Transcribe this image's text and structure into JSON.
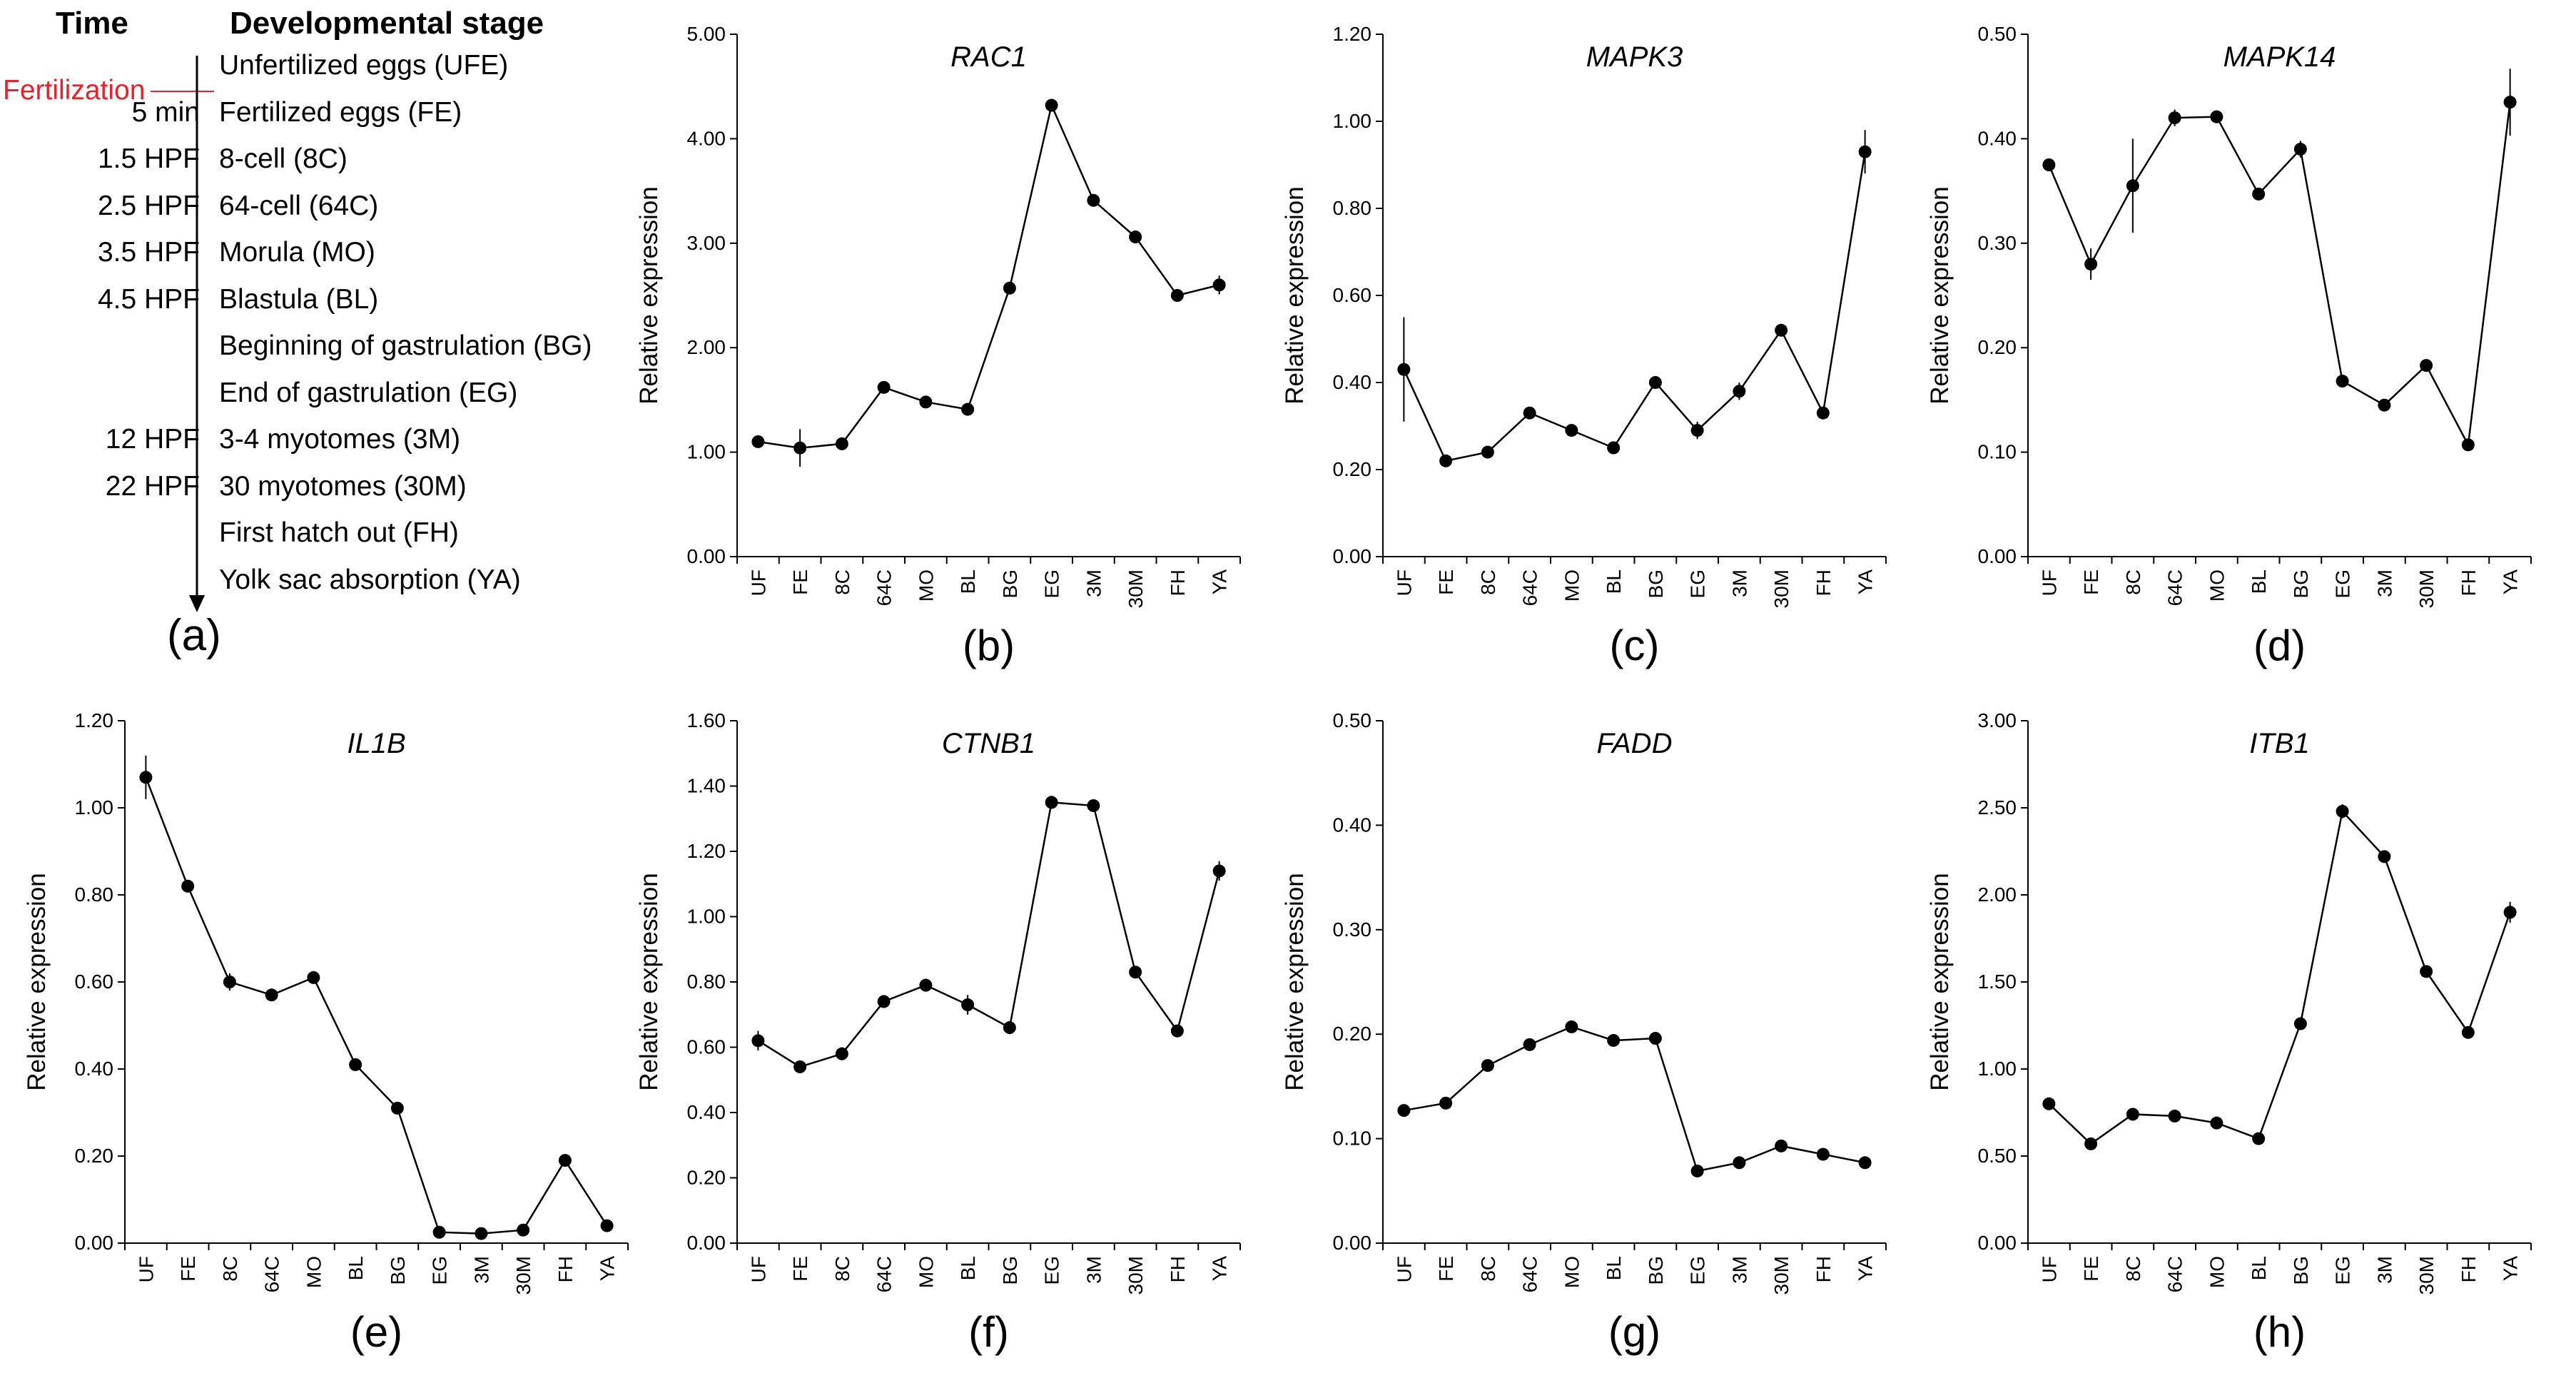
{
  "timeline": {
    "time_header": "Time",
    "stage_header": "Developmental stage",
    "fertilization_label": "Fertilization",
    "stages": [
      {
        "time": "",
        "stage": "Unfertilized eggs (UFE)"
      },
      {
        "time": "5 min",
        "stage": "Fertilized eggs (FE)"
      },
      {
        "time": "1.5 HPF",
        "stage": "8-cell (8C)"
      },
      {
        "time": "2.5 HPF",
        "stage": "64-cell (64C)"
      },
      {
        "time": "3.5 HPF",
        "stage": "Morula (MO)"
      },
      {
        "time": "4.5 HPF",
        "stage": "Blastula (BL)"
      },
      {
        "time": "",
        "stage": "Beginning of gastrulation (BG)"
      },
      {
        "time": "",
        "stage": "End of gastrulation (EG)"
      },
      {
        "time": "12 HPF",
        "stage": "3-4 myotomes (3M)"
      },
      {
        "time": "22 HPF",
        "stage": "30 myotomes (30M)"
      },
      {
        "time": "",
        "stage": "First hatch out (FH)"
      },
      {
        "time": "",
        "stage": "Yolk sac absorption (YA)"
      }
    ],
    "panel_label": "(a)",
    "line_color": "#e8212b"
  },
  "chart_data": [
    {
      "type": "line",
      "panel": "(b)",
      "title": "RAC1",
      "xlabel": "",
      "ylabel": "Relative expression",
      "categories": [
        "UF",
        "FE",
        "8C",
        "64C",
        "MO",
        "BL",
        "BG",
        "EG",
        "3M",
        "30M",
        "FH",
        "YA"
      ],
      "values": [
        1.1,
        1.04,
        1.08,
        1.62,
        1.48,
        1.41,
        2.57,
        4.32,
        3.41,
        3.06,
        2.5,
        2.6
      ],
      "errors": [
        0.03,
        0.18,
        0.03,
        0.03,
        0.03,
        0.03,
        0.05,
        0.04,
        0.04,
        0.06,
        0.05,
        0.09
      ],
      "ylim": [
        0,
        5
      ],
      "yticks": [
        "0.00",
        "1.00",
        "2.00",
        "3.00",
        "4.00",
        "5.00"
      ]
    },
    {
      "type": "line",
      "panel": "(c)",
      "title": "MAPK3",
      "xlabel": "",
      "ylabel": "Relative expression",
      "categories": [
        "UF",
        "FE",
        "8C",
        "64C",
        "MO",
        "BL",
        "BG",
        "EG",
        "3M",
        "30M",
        "FH",
        "YA"
      ],
      "values": [
        0.43,
        0.22,
        0.24,
        0.33,
        0.29,
        0.25,
        0.4,
        0.29,
        0.38,
        0.52,
        0.33,
        0.93
      ],
      "errors": [
        0.12,
        0.01,
        0.01,
        0.01,
        0.01,
        0.01,
        0.01,
        0.02,
        0.02,
        0.01,
        0.01,
        0.05
      ],
      "ylim": [
        0,
        1.2
      ],
      "yticks": [
        "0.00",
        "0.20",
        "0.40",
        "0.60",
        "0.80",
        "1.00",
        "1.20"
      ]
    },
    {
      "type": "line",
      "panel": "(d)",
      "title": "MAPK14",
      "xlabel": "",
      "ylabel": "Relative expression",
      "categories": [
        "UF",
        "FE",
        "8C",
        "64C",
        "MO",
        "BL",
        "BG",
        "EG",
        "3M",
        "30M",
        "FH",
        "YA"
      ],
      "values": [
        0.375,
        0.28,
        0.355,
        0.42,
        0.421,
        0.347,
        0.39,
        0.168,
        0.145,
        0.183,
        0.107,
        0.435
      ],
      "errors": [
        0.005,
        0.015,
        0.045,
        0.008,
        0.004,
        0.005,
        0.008,
        0.003,
        0.003,
        0.003,
        0.003,
        0.032
      ],
      "ylim": [
        0,
        0.5
      ],
      "yticks": [
        "0.00",
        "0.10",
        "0.20",
        "0.30",
        "0.40",
        "0.50"
      ]
    },
    {
      "type": "line",
      "panel": "(e)",
      "title": "IL1B",
      "xlabel": "",
      "ylabel": "Relative expression",
      "categories": [
        "UF",
        "FE",
        "8C",
        "64C",
        "MO",
        "BL",
        "BG",
        "EG",
        "3M",
        "30M",
        "FH",
        "YA"
      ],
      "values": [
        1.07,
        0.82,
        0.6,
        0.57,
        0.61,
        0.41,
        0.31,
        0.025,
        0.022,
        0.03,
        0.19,
        0.04
      ],
      "errors": [
        0.05,
        0.01,
        0.02,
        0.01,
        0.01,
        0.01,
        0.01,
        0.005,
        0.005,
        0.005,
        0.005,
        0.005
      ],
      "ylim": [
        0,
        1.2
      ],
      "yticks": [
        "0.00",
        "0.20",
        "0.40",
        "0.60",
        "0.80",
        "1.00",
        "1.20"
      ]
    },
    {
      "type": "line",
      "panel": "(f)",
      "title": "CTNB1",
      "xlabel": "",
      "ylabel": "Relative expression",
      "categories": [
        "UF",
        "FE",
        "8C",
        "64C",
        "MO",
        "BL",
        "BG",
        "EG",
        "3M",
        "30M",
        "FH",
        "YA"
      ],
      "values": [
        0.62,
        0.54,
        0.58,
        0.74,
        0.79,
        0.73,
        0.66,
        1.35,
        1.34,
        0.83,
        0.65,
        1.14
      ],
      "errors": [
        0.03,
        0.01,
        0.02,
        0.02,
        0.02,
        0.03,
        0.02,
        0.02,
        0.01,
        0.01,
        0.01,
        0.03
      ],
      "ylim": [
        0,
        1.6
      ],
      "yticks": [
        "0.00",
        "0.20",
        "0.40",
        "0.60",
        "0.80",
        "1.00",
        "1.20",
        "1.40",
        "1.60"
      ]
    },
    {
      "type": "line",
      "panel": "(g)",
      "title": "FADD",
      "xlabel": "",
      "ylabel": "Relative expression",
      "categories": [
        "UF",
        "FE",
        "8C",
        "64C",
        "MO",
        "BL",
        "BG",
        "EG",
        "3M",
        "30M",
        "FH",
        "YA"
      ],
      "values": [
        0.127,
        0.134,
        0.17,
        0.19,
        0.207,
        0.194,
        0.196,
        0.069,
        0.077,
        0.093,
        0.085,
        0.077
      ],
      "errors": [
        0.002,
        0.002,
        0.003,
        0.005,
        0.003,
        0.002,
        0.002,
        0.002,
        0.002,
        0.004,
        0.002,
        0.002
      ],
      "ylim": [
        0,
        0.5
      ],
      "yticks": [
        "0.00",
        "0.10",
        "0.20",
        "0.30",
        "0.40",
        "0.50"
      ]
    },
    {
      "type": "line",
      "panel": "(h)",
      "title": "ITB1",
      "xlabel": "",
      "ylabel": "Relative expression",
      "categories": [
        "UF",
        "FE",
        "8C",
        "64C",
        "MO",
        "BL",
        "BG",
        "EG",
        "3M",
        "30M",
        "FH",
        "YA"
      ],
      "values": [
        0.8,
        0.57,
        0.74,
        0.73,
        0.69,
        0.6,
        1.26,
        2.48,
        2.22,
        1.56,
        1.21,
        1.9
      ],
      "errors": [
        0.02,
        0.01,
        0.02,
        0.02,
        0.02,
        0.02,
        0.02,
        0.04,
        0.02,
        0.02,
        0.03,
        0.06
      ],
      "ylim": [
        0,
        3
      ],
      "yticks": [
        "0.00",
        "0.50",
        "1.00",
        "1.50",
        "2.00",
        "2.50",
        "3.00"
      ]
    }
  ]
}
